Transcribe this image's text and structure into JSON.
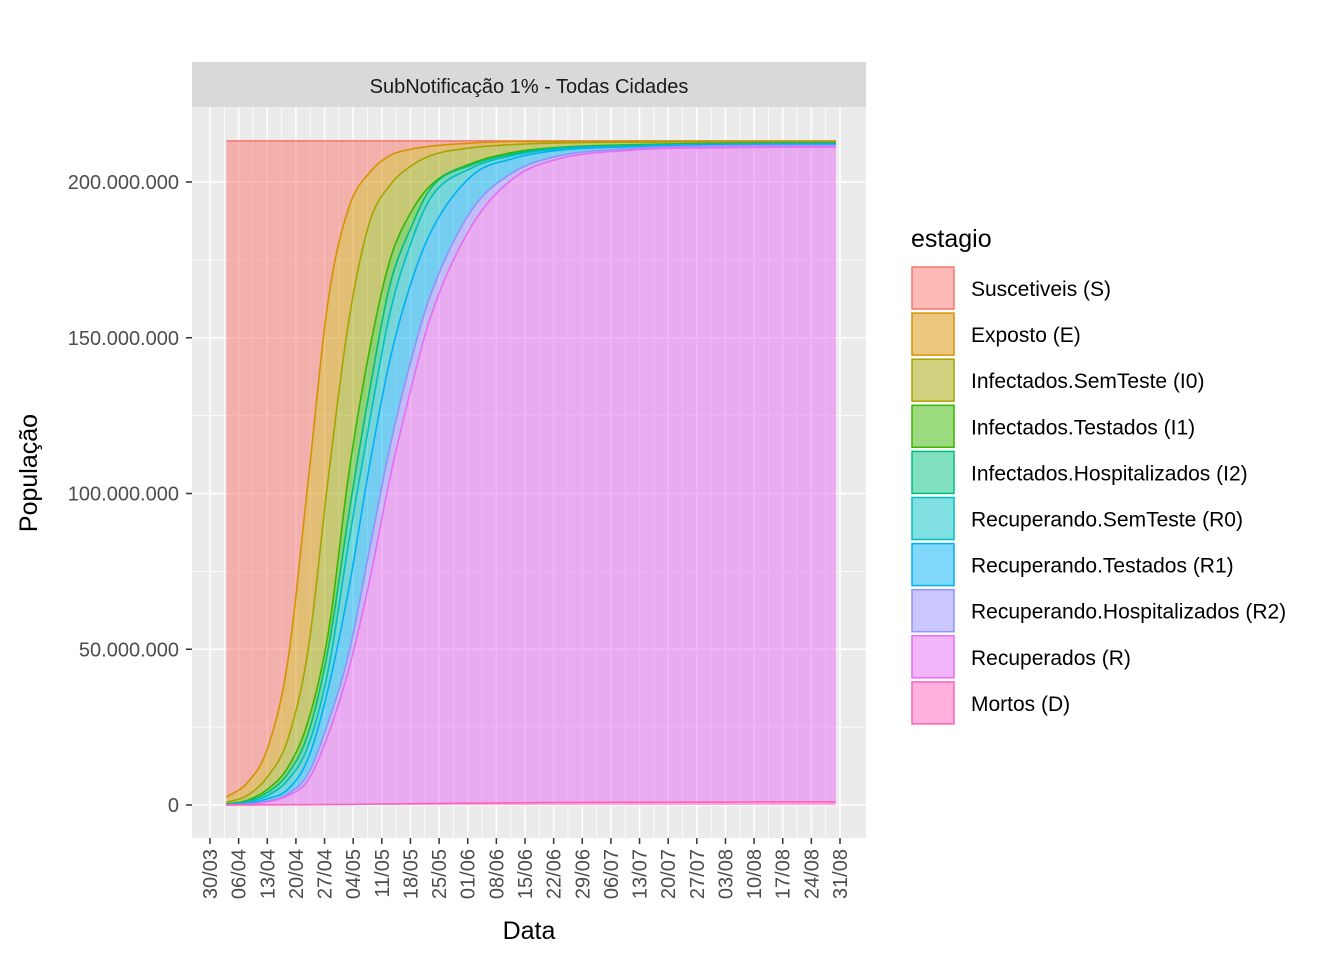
{
  "chart_data": {
    "type": "area",
    "stacked": true,
    "title": "SubNotificação 1% - Todas Cidades",
    "xlabel": "Data",
    "ylabel": "População",
    "legend_title": "estagio",
    "legend_position": "right",
    "grid": true,
    "x_start_date": "03/04",
    "x_unit": "days since 03/04",
    "x_tick_origin_day": -4,
    "x_tick_step_days": 7,
    "x_tick_labels": [
      "30/03",
      "06/04",
      "13/04",
      "20/04",
      "27/04",
      "04/05",
      "11/05",
      "18/05",
      "25/05",
      "01/06",
      "08/06",
      "15/06",
      "22/06",
      "29/06",
      "06/07",
      "13/07",
      "20/07",
      "27/07",
      "03/08",
      "10/08",
      "17/08",
      "24/08",
      "31/08"
    ],
    "y_unit": "millions",
    "ylim": [
      -10,
      225
    ],
    "y_ticks": [
      0,
      50,
      100,
      150,
      200
    ],
    "y_tick_labels": [
      "0",
      "50.000.000",
      "100.000.000",
      "150.000.000",
      "200.000.000"
    ],
    "x": [
      0,
      5,
      10,
      15,
      20,
      25,
      30,
      35,
      40,
      45,
      50,
      60,
      70,
      80,
      100,
      120,
      149
    ],
    "series_note": "top = cumulative stacked upper boundary of each layer (millions)",
    "series": [
      {
        "name": "Suscetiveis (S)",
        "color": "#F8766D",
        "top": [
          213.2,
          213.2,
          213.2,
          213.2,
          213.2,
          213.2,
          213.2,
          213.2,
          213.2,
          213.2,
          213.2,
          213.2,
          213.2,
          213.2,
          213.2,
          213.2,
          213.2
        ]
      },
      {
        "name": "Exposto (E)",
        "color": "#D89000",
        "top": [
          2.5,
          7,
          18,
          46,
          104,
          163,
          192,
          203,
          208.5,
          210.5,
          211.5,
          212.5,
          213,
          213,
          213.1,
          213.1,
          213.1
        ]
      },
      {
        "name": "Infectados.SemTeste (I0)",
        "color": "#A3A500",
        "top": [
          0.8,
          3,
          9,
          21,
          50,
          106,
          156,
          187,
          199,
          205,
          208.5,
          211,
          212,
          212.5,
          212.8,
          212.9,
          213
        ]
      },
      {
        "name": "Infectados.Testados (I1)",
        "color": "#39B600",
        "top": [
          0.3,
          1.5,
          5,
          12,
          27,
          56,
          107,
          146,
          175,
          190,
          199,
          206,
          209.5,
          211,
          212,
          212.4,
          212.6
        ]
      },
      {
        "name": "Infectados.Hospitalizados (I2)",
        "color": "#00BF7D",
        "top": [
          0.2,
          1.2,
          4,
          10,
          23,
          51,
          94,
          133,
          167,
          185,
          198,
          205.5,
          209,
          210.8,
          211.8,
          212.2,
          212.4
        ]
      },
      {
        "name": "Recuperando.SemTeste (R0)",
        "color": "#00BFC4",
        "top": [
          0.1,
          0.9,
          3,
          8,
          19,
          44,
          85,
          123,
          158,
          180,
          195,
          204.5,
          208.5,
          210.5,
          211.6,
          212.1,
          212.3
        ]
      },
      {
        "name": "Recuperando.Testados (R1)",
        "color": "#00B0F6",
        "top": [
          0.05,
          0.5,
          2,
          5,
          15,
          38,
          70,
          109,
          143,
          167,
          184,
          202,
          207.5,
          210,
          211.4,
          212,
          212.2
        ]
      },
      {
        "name": "Recuperando.Hospitalizados (R2)",
        "color": "#9590FF",
        "top": [
          0.02,
          0.3,
          1.2,
          3.5,
          10,
          27,
          49,
          82,
          115,
          142,
          164,
          191,
          203,
          208,
          210.8,
          211.6,
          211.8
        ]
      },
      {
        "name": "Recuperados (R)",
        "color": "#E76BF3",
        "top": [
          0.01,
          0.2,
          1,
          3,
          8,
          23,
          44,
          72,
          105,
          133,
          157,
          186,
          201,
          207,
          210.3,
          211,
          211.2
        ]
      },
      {
        "name": "Mortos (D)",
        "color": "#FF62BC",
        "top": [
          0,
          0.02,
          0.05,
          0.08,
          0.1,
          0.15,
          0.2,
          0.28,
          0.35,
          0.42,
          0.5,
          0.6,
          0.7,
          0.8,
          0.9,
          0.95,
          1.0
        ]
      }
    ]
  }
}
